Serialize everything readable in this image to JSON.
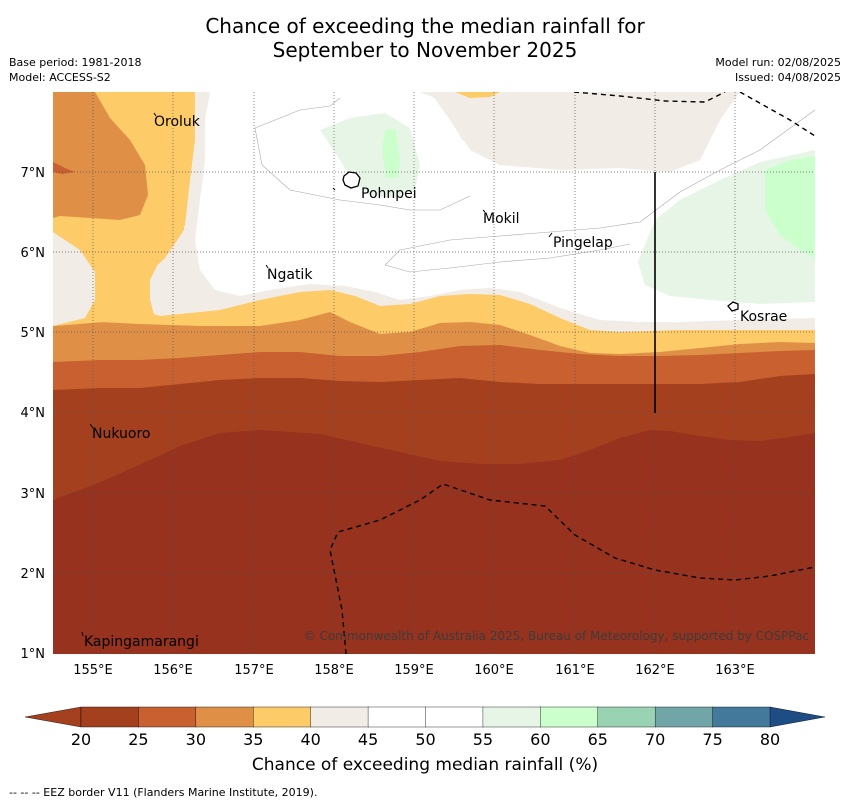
{
  "title": "Chance of exceeding the median rainfall for\nSeptember to November 2025",
  "meta_left": {
    "base_period": "Base period: 1981-2018",
    "model": "Model: ACCESS-S2"
  },
  "meta_right": {
    "model_run": "Model run: 02/08/2025",
    "issued": "Issued: 04/08/2025"
  },
  "map": {
    "lon_ticks": [
      "155°E",
      "156°E",
      "157°E",
      "158°E",
      "159°E",
      "160°E",
      "161°E",
      "162°E",
      "163°E"
    ],
    "lat_ticks": [
      "7°N",
      "6°N",
      "5°N",
      "4°N",
      "3°N",
      "2°N",
      "1°N"
    ],
    "places": [
      "Oroluk",
      "Pohnpei",
      "Mokil",
      "Pingelap",
      "Ngatik",
      "Kosrae",
      "Nukuoro",
      "Kapingamarangi"
    ],
    "copyright": "© Commonwealth of Australia 2025, Bureau of Meteorology, supported by COSPPac"
  },
  "colorbar": {
    "ticks": [
      "20",
      "25",
      "30",
      "35",
      "40",
      "45",
      "50",
      "55",
      "60",
      "65",
      "70",
      "75",
      "80"
    ],
    "colors": [
      "#a5401f",
      "#c8602f",
      "#df9046",
      "#fdcb68",
      "#f1ece6",
      "#ffffff",
      "#ffffff",
      "#e7f5e6",
      "#cbffcb",
      "#9ad3b4",
      "#71a5a8",
      "#437a9b",
      "#1d4d84"
    ],
    "label": "Chance of exceeding median rainfall (%)"
  },
  "footer": "--  --  -- EEZ border V11 (Flanders Marine Institute, 2019)."
}
